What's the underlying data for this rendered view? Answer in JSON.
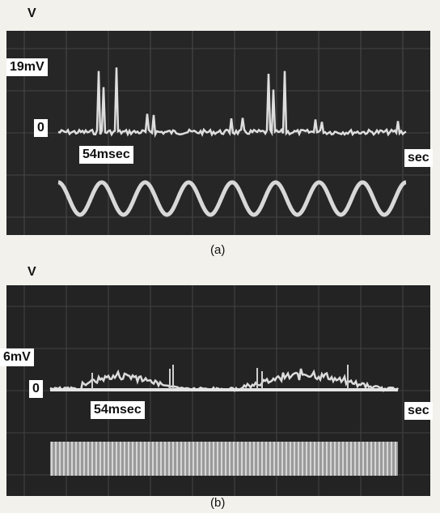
{
  "panel_a": {
    "y_axis_label": "V",
    "scale_label": "19mV",
    "zero_label": "0",
    "time_label": "54msec",
    "x_axis_label": "sec",
    "caption": "(a)"
  },
  "panel_b": {
    "y_axis_label": "V",
    "scale_label": "6mV",
    "zero_label": "0",
    "time_label": "54msec",
    "x_axis_label": "sec",
    "caption": "(b)"
  }
}
